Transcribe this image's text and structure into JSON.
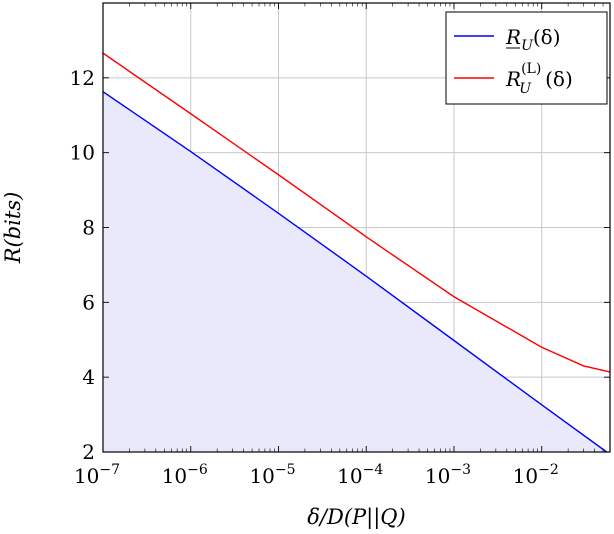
{
  "chart_data": {
    "type": "line",
    "x_scale": "log",
    "xlim": [
      1e-07,
      0.06
    ],
    "ylim": [
      2,
      14
    ],
    "grid": true,
    "legend_position": "top-right",
    "xlabel": {
      "main": "δ/D(P||Q)"
    },
    "ylabel": {
      "main": "R(bits)"
    },
    "x_ticks": [
      {
        "base": "10",
        "exp": "−7",
        "value": 1e-07
      },
      {
        "base": "10",
        "exp": "−6",
        "value": 1e-06
      },
      {
        "base": "10",
        "exp": "−5",
        "value": 1e-05
      },
      {
        "base": "10",
        "exp": "−4",
        "value": 0.0001
      },
      {
        "base": "10",
        "exp": "−3",
        "value": 0.001
      },
      {
        "base": "10",
        "exp": "−2",
        "value": 0.01
      }
    ],
    "y_ticks": [
      "2",
      "4",
      "6",
      "8",
      "10",
      "12"
    ],
    "series": [
      {
        "name": "R_U(δ)",
        "legend": {
          "main": "R",
          "sub": "U",
          "sup": "",
          "arg": "(δ)",
          "underline": true
        },
        "color": "#0000ff",
        "fill": "#e9e9fb",
        "x": [
          1e-07,
          1e-06,
          1e-05,
          0.0001,
          0.001,
          0.01,
          0.055
        ],
        "y": [
          11.63,
          10.03,
          8.38,
          6.7,
          4.98,
          3.26,
          2.0
        ]
      },
      {
        "name": "R_U^(L)(δ)",
        "legend": {
          "main": "R",
          "sub": "U",
          "sup": "(L)",
          "arg": "(δ)",
          "underline": false
        },
        "color": "#ff0000",
        "fill": "none",
        "x": [
          1e-07,
          1e-06,
          1e-05,
          0.0001,
          0.001,
          0.01,
          0.03,
          0.06
        ],
        "y": [
          12.66,
          11.04,
          9.41,
          7.75,
          6.15,
          4.8,
          4.3,
          4.14
        ]
      }
    ]
  }
}
